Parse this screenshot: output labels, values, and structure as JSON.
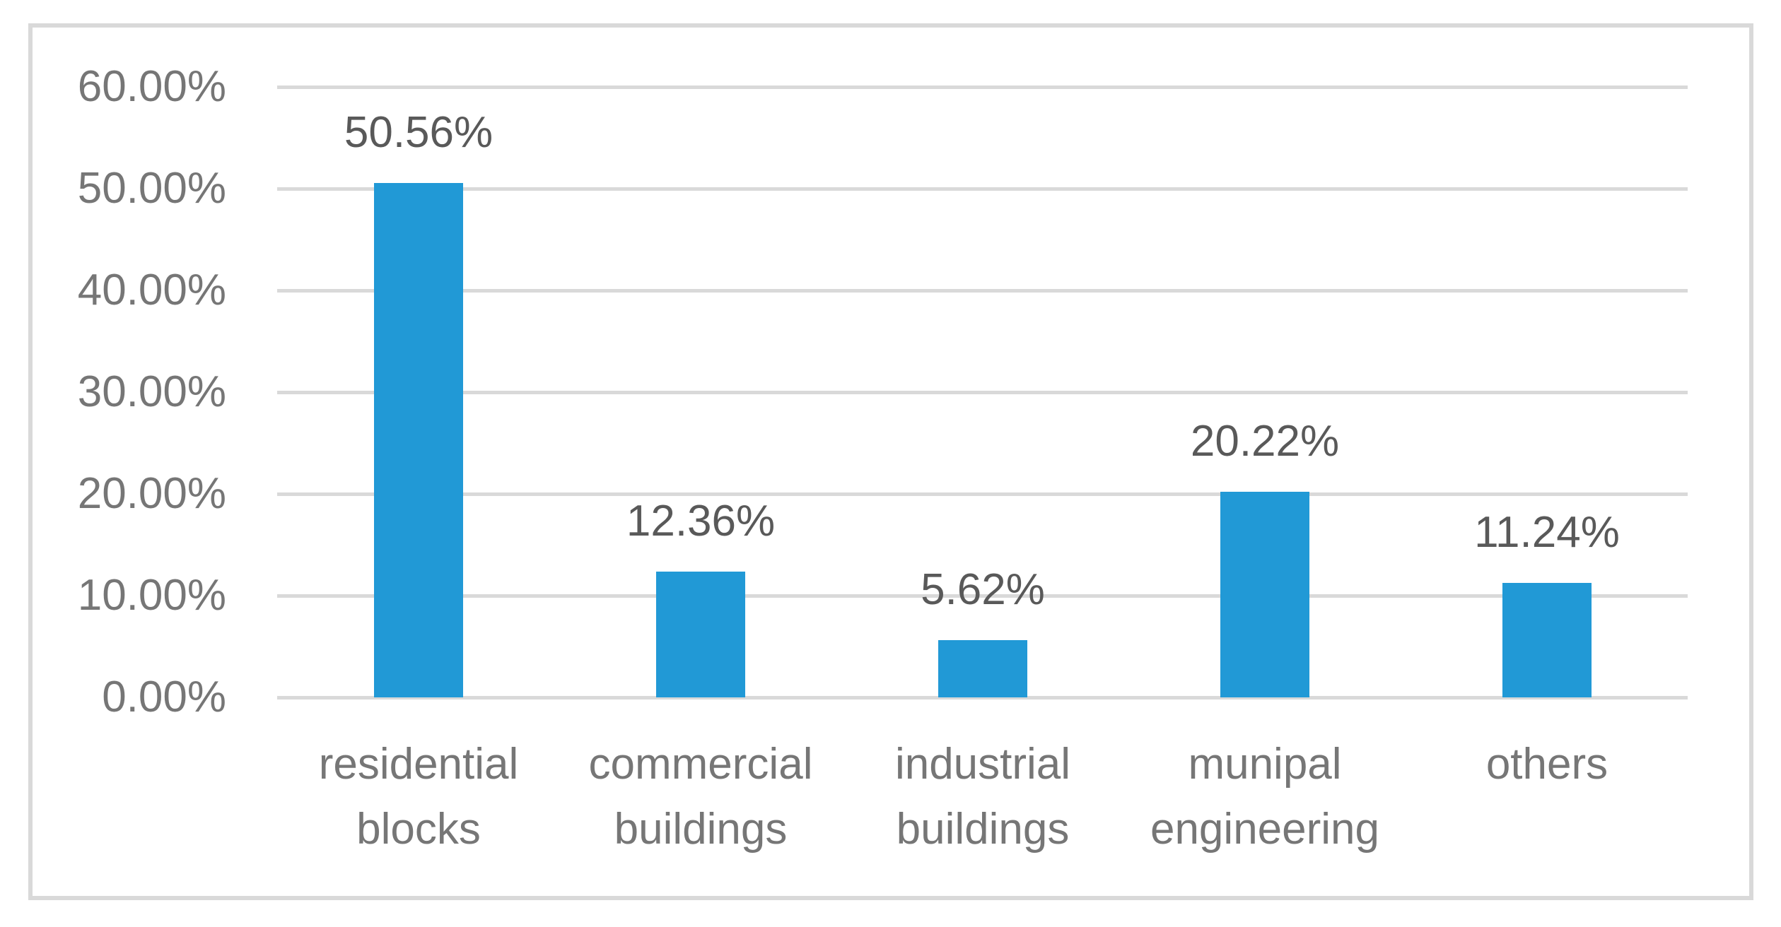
{
  "chart_data": {
    "type": "bar",
    "title": "",
    "xlabel": "",
    "ylabel": "",
    "categories": [
      "residential blocks",
      "commercial buildings",
      "industrial buildings",
      "munipal engineering",
      "others"
    ],
    "category_lines": [
      [
        "residential",
        "blocks"
      ],
      [
        "commercial",
        "buildings"
      ],
      [
        "industrial",
        "buildings"
      ],
      [
        "munipal",
        "engineering"
      ],
      [
        "others"
      ]
    ],
    "values": [
      50.56,
      12.36,
      5.62,
      20.22,
      11.24
    ],
    "data_labels": [
      "50.56%",
      "12.36%",
      "5.62%",
      "20.22%",
      "11.24%"
    ],
    "y_ticks": [
      "0.00%",
      "10.00%",
      "20.00%",
      "30.00%",
      "40.00%",
      "50.00%",
      "60.00%"
    ],
    "y_tick_values": [
      0,
      10,
      20,
      30,
      40,
      50,
      60
    ],
    "ylim": [
      0,
      60
    ],
    "grid": true,
    "legend": false,
    "colors": {
      "bar": "#2199D6",
      "gridline": "#D9D9D9",
      "frame_border": "#D9D9D9",
      "axis_text": "#767676",
      "data_label_text": "#595959",
      "background": "#FFFFFF"
    }
  }
}
